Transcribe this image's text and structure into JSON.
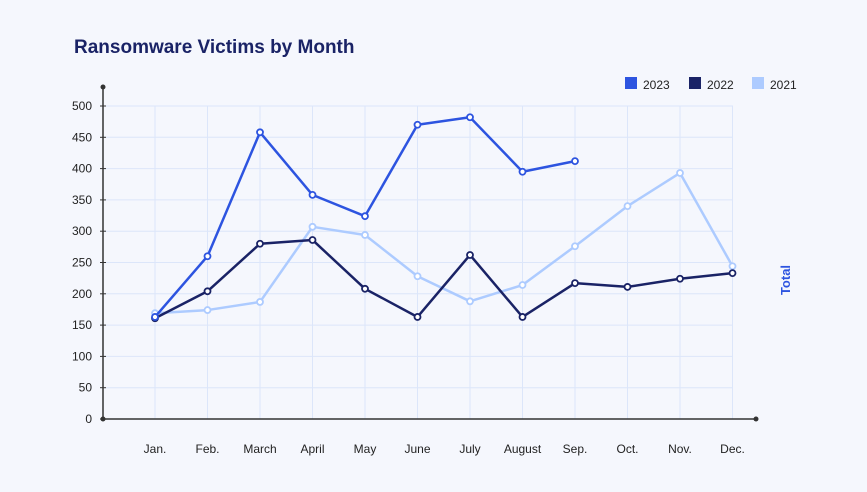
{
  "chart_data": {
    "type": "line",
    "title": "Ransomware Victims by Month",
    "ylabel": "Total",
    "xlabel": "",
    "categories": [
      "Jan.",
      "Feb.",
      "March",
      "April",
      "May",
      "June",
      "July",
      "August",
      "Sep.",
      "Oct.",
      "Nov.",
      "Dec."
    ],
    "ylim": [
      0,
      500
    ],
    "yticks": [
      "0",
      "50",
      "100",
      "150",
      "200",
      "250",
      "300",
      "350",
      "400",
      "450",
      "500"
    ],
    "grid": true,
    "legend": "top-right",
    "series": [
      {
        "name": "2023",
        "color": "#2d54e0",
        "values": [
          163,
          260,
          458,
          358,
          324,
          470,
          482,
          395,
          412,
          null,
          null,
          null
        ]
      },
      {
        "name": "2022",
        "color": "#1a2366",
        "values": [
          161,
          204,
          280,
          286,
          208,
          163,
          262,
          163,
          217,
          211,
          224,
          233
        ]
      },
      {
        "name": "2021",
        "color": "#adcbff",
        "values": [
          169,
          174,
          187,
          307,
          294,
          228,
          188,
          214,
          276,
          340,
          393,
          244
        ]
      }
    ]
  }
}
